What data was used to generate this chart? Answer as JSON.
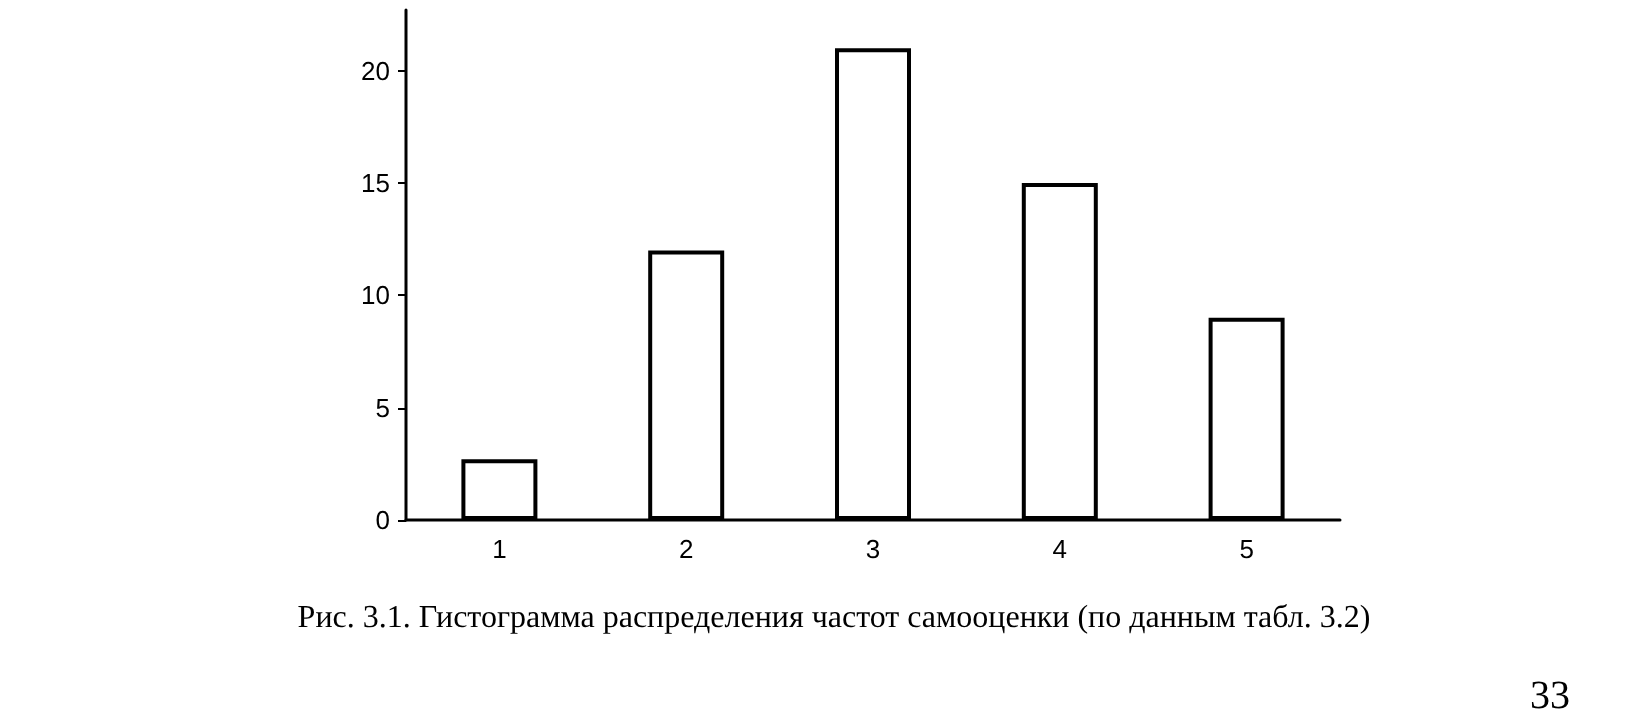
{
  "chart_data": {
    "type": "bar",
    "title": "Рис. 3.1. Гистограмма распределения частот самооценки (по данным табл. 3.2)",
    "categories": [
      "1",
      "2",
      "3",
      "4",
      "5"
    ],
    "values": [
      2.7,
      12,
      21,
      15,
      9
    ],
    "color": "#ffffff",
    "ylim": [
      0,
      22.7
    ],
    "yticks": [
      0,
      5,
      10,
      15,
      20
    ],
    "grid": false,
    "annotations": [
      "33"
    ]
  }
}
